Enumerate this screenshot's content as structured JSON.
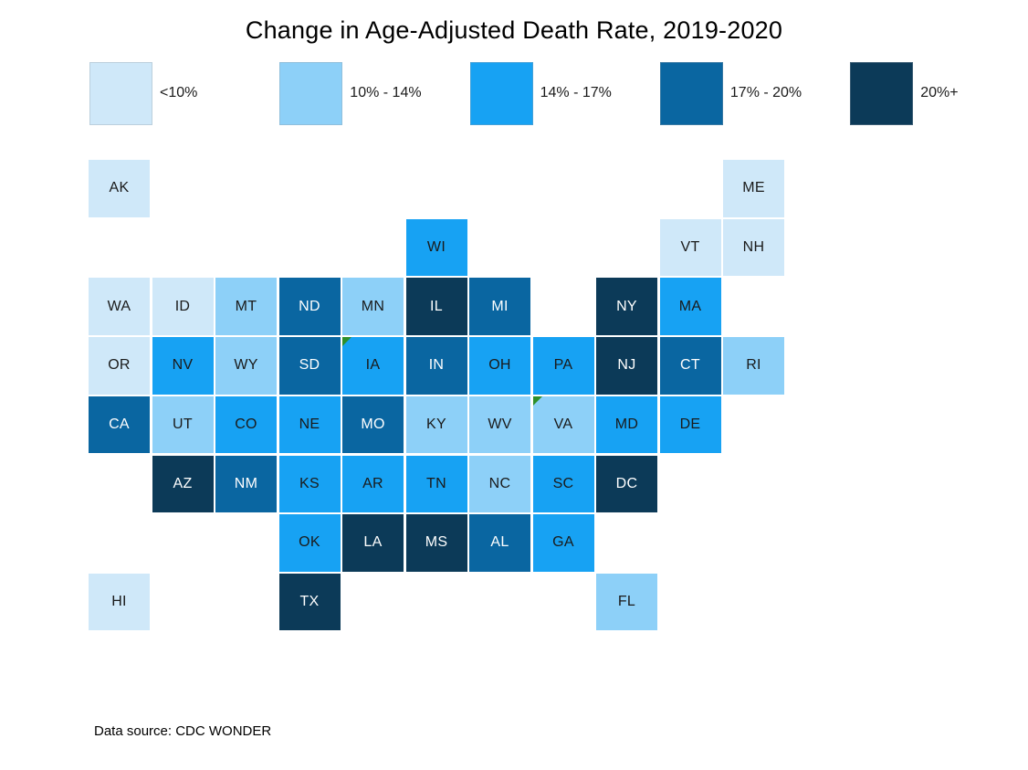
{
  "chart_data": {
    "type": "heatmap",
    "title": "Change in Age-Adjusted Death Rate, 2019-2020",
    "source_note": "Data source: CDC WONDER",
    "legend_position": "top",
    "grid": "off",
    "marker_color": "#2F8F2A",
    "legend": [
      {
        "label": "<10%",
        "color": "#CFE8F9",
        "text_color": "#1a1a1a"
      },
      {
        "label": "10% - 14%",
        "color": "#8DD0F8",
        "text_color": "#1a1a1a"
      },
      {
        "label": "14% - 17%",
        "color": "#17A2F3",
        "text_color": "#1a1a1a"
      },
      {
        "label": "17% - 20%",
        "color": "#0A66A1",
        "text_color": "#ffffff"
      },
      {
        "label": "20%+",
        "color": "#0C3A58",
        "text_color": "#ffffff"
      }
    ],
    "states": [
      {
        "abbr": "AK",
        "row": 1,
        "col": 1,
        "bucket": 0
      },
      {
        "abbr": "ME",
        "row": 1,
        "col": 11,
        "bucket": 0
      },
      {
        "abbr": "WI",
        "row": 2,
        "col": 6,
        "bucket": 2
      },
      {
        "abbr": "VT",
        "row": 2,
        "col": 10,
        "bucket": 0
      },
      {
        "abbr": "NH",
        "row": 2,
        "col": 11,
        "bucket": 0
      },
      {
        "abbr": "WA",
        "row": 3,
        "col": 1,
        "bucket": 0
      },
      {
        "abbr": "ID",
        "row": 3,
        "col": 2,
        "bucket": 0
      },
      {
        "abbr": "MT",
        "row": 3,
        "col": 3,
        "bucket": 1
      },
      {
        "abbr": "ND",
        "row": 3,
        "col": 4,
        "bucket": 3
      },
      {
        "abbr": "MN",
        "row": 3,
        "col": 5,
        "bucket": 1
      },
      {
        "abbr": "IL",
        "row": 3,
        "col": 6,
        "bucket": 4
      },
      {
        "abbr": "MI",
        "row": 3,
        "col": 7,
        "bucket": 3
      },
      {
        "abbr": "NY",
        "row": 3,
        "col": 9,
        "bucket": 4
      },
      {
        "abbr": "MA",
        "row": 3,
        "col": 10,
        "bucket": 2
      },
      {
        "abbr": "OR",
        "row": 4,
        "col": 1,
        "bucket": 0
      },
      {
        "abbr": "NV",
        "row": 4,
        "col": 2,
        "bucket": 2
      },
      {
        "abbr": "WY",
        "row": 4,
        "col": 3,
        "bucket": 1
      },
      {
        "abbr": "SD",
        "row": 4,
        "col": 4,
        "bucket": 3
      },
      {
        "abbr": "IA",
        "row": 4,
        "col": 5,
        "bucket": 2,
        "marker": true
      },
      {
        "abbr": "IN",
        "row": 4,
        "col": 6,
        "bucket": 3
      },
      {
        "abbr": "OH",
        "row": 4,
        "col": 7,
        "bucket": 2
      },
      {
        "abbr": "PA",
        "row": 4,
        "col": 8,
        "bucket": 2
      },
      {
        "abbr": "NJ",
        "row": 4,
        "col": 9,
        "bucket": 4
      },
      {
        "abbr": "CT",
        "row": 4,
        "col": 10,
        "bucket": 3
      },
      {
        "abbr": "RI",
        "row": 4,
        "col": 11,
        "bucket": 1
      },
      {
        "abbr": "CA",
        "row": 5,
        "col": 1,
        "bucket": 3
      },
      {
        "abbr": "UT",
        "row": 5,
        "col": 2,
        "bucket": 1
      },
      {
        "abbr": "CO",
        "row": 5,
        "col": 3,
        "bucket": 2
      },
      {
        "abbr": "NE",
        "row": 5,
        "col": 4,
        "bucket": 2
      },
      {
        "abbr": "MO",
        "row": 5,
        "col": 5,
        "bucket": 3
      },
      {
        "abbr": "KY",
        "row": 5,
        "col": 6,
        "bucket": 1
      },
      {
        "abbr": "WV",
        "row": 5,
        "col": 7,
        "bucket": 1
      },
      {
        "abbr": "VA",
        "row": 5,
        "col": 8,
        "bucket": 1,
        "marker": true
      },
      {
        "abbr": "MD",
        "row": 5,
        "col": 9,
        "bucket": 2
      },
      {
        "abbr": "DE",
        "row": 5,
        "col": 10,
        "bucket": 2
      },
      {
        "abbr": "AZ",
        "row": 6,
        "col": 2,
        "bucket": 4
      },
      {
        "abbr": "NM",
        "row": 6,
        "col": 3,
        "bucket": 3
      },
      {
        "abbr": "KS",
        "row": 6,
        "col": 4,
        "bucket": 2
      },
      {
        "abbr": "AR",
        "row": 6,
        "col": 5,
        "bucket": 2
      },
      {
        "abbr": "TN",
        "row": 6,
        "col": 6,
        "bucket": 2
      },
      {
        "abbr": "NC",
        "row": 6,
        "col": 7,
        "bucket": 1
      },
      {
        "abbr": "SC",
        "row": 6,
        "col": 8,
        "bucket": 2
      },
      {
        "abbr": "DC",
        "row": 6,
        "col": 9,
        "bucket": 4
      },
      {
        "abbr": "OK",
        "row": 7,
        "col": 4,
        "bucket": 2
      },
      {
        "abbr": "LA",
        "row": 7,
        "col": 5,
        "bucket": 4
      },
      {
        "abbr": "MS",
        "row": 7,
        "col": 6,
        "bucket": 4
      },
      {
        "abbr": "AL",
        "row": 7,
        "col": 7,
        "bucket": 3
      },
      {
        "abbr": "GA",
        "row": 7,
        "col": 8,
        "bucket": 2
      },
      {
        "abbr": "HI",
        "row": 8,
        "col": 1,
        "bucket": 0
      },
      {
        "abbr": "TX",
        "row": 8,
        "col": 4,
        "bucket": 4
      },
      {
        "abbr": "FL",
        "row": 8,
        "col": 9,
        "bucket": 1
      }
    ]
  }
}
